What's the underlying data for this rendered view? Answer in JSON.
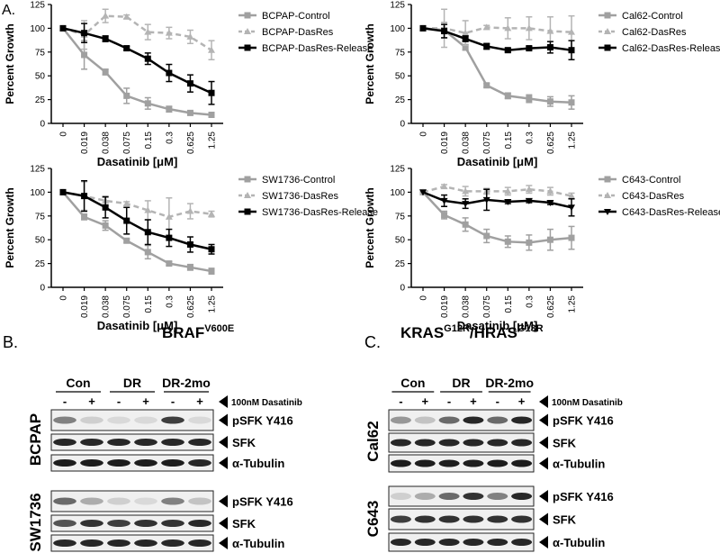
{
  "panel_a": {
    "label": "A."
  },
  "chart_data": [
    {
      "type": "line",
      "x_label": "Dasatinib [μM]",
      "y_label": "Percent Growth",
      "categories": [
        "0",
        "0.019",
        "0.038",
        "0.075",
        "0.15",
        "0.3",
        "0.625",
        "1.25"
      ],
      "ylim": [
        0,
        125
      ],
      "yticks": [
        0,
        25,
        50,
        75,
        100,
        125
      ],
      "grid": false,
      "series": [
        {
          "name": "BCPAP-Control",
          "color": "#a0a0a0",
          "dashed": false,
          "marker": "square",
          "values": [
            100,
            72,
            54,
            29,
            21,
            15,
            11,
            9
          ],
          "errors": [
            0,
            15,
            3,
            8,
            6,
            3,
            1,
            1
          ]
        },
        {
          "name": "BCPAP-DasRes",
          "color": "#b4b4b4",
          "dashed": true,
          "marker": "triangle",
          "values": [
            100,
            93,
            113,
            112,
            96,
            95,
            91,
            77
          ],
          "errors": [
            0,
            15,
            7,
            2,
            8,
            6,
            7,
            10
          ]
        },
        {
          "name": "BCPAP-DasRes-Release",
          "color": "#000000",
          "dashed": false,
          "marker": "square",
          "values": [
            100,
            95,
            89,
            79,
            68,
            53,
            42,
            32
          ],
          "errors": [
            0,
            10,
            3,
            2,
            6,
            9,
            9,
            12
          ]
        }
      ]
    },
    {
      "type": "line",
      "x_label": "Dasatinib [μM]",
      "y_label": "Percent Growth",
      "categories": [
        "0",
        "0.019",
        "0.038",
        "0.075",
        "0.15",
        "0.3",
        "0.625",
        "1.25"
      ],
      "ylim": [
        0,
        125
      ],
      "yticks": [
        0,
        25,
        50,
        75,
        100,
        125
      ],
      "grid": false,
      "series": [
        {
          "name": "Cal62-Control",
          "color": "#a0a0a0",
          "dashed": false,
          "marker": "square",
          "values": [
            100,
            98,
            80,
            40,
            29,
            26,
            23,
            22
          ],
          "errors": [
            0,
            8,
            3,
            2,
            3,
            4,
            5,
            7
          ]
        },
        {
          "name": "Cal62-DasRes",
          "color": "#b4b4b4",
          "dashed": true,
          "marker": "triangle",
          "values": [
            100,
            100,
            95,
            101,
            100,
            100,
            97,
            96
          ],
          "errors": [
            0,
            20,
            13,
            2,
            11,
            12,
            15,
            17
          ]
        },
        {
          "name": "Cal62-DasRes-Release",
          "color": "#000000",
          "dashed": false,
          "marker": "square",
          "values": [
            100,
            97,
            89,
            81,
            77,
            79,
            80,
            77
          ],
          "errors": [
            0,
            7,
            3,
            3,
            2,
            2,
            6,
            10
          ]
        }
      ]
    },
    {
      "type": "line",
      "x_label": "Dasatinib [μM]",
      "y_label": "Percent Growth",
      "categories": [
        "0",
        "0.019",
        "0.038",
        "0.075",
        "0.15",
        "0.3",
        "0.625",
        "1.25"
      ],
      "ylim": [
        0,
        125
      ],
      "yticks": [
        0,
        25,
        50,
        75,
        100,
        125
      ],
      "grid": false,
      "series": [
        {
          "name": "SW1736-Control",
          "color": "#a0a0a0",
          "dashed": false,
          "marker": "square",
          "values": [
            100,
            74,
            65,
            49,
            37,
            25,
            21,
            17
          ],
          "errors": [
            0,
            3,
            5,
            2,
            7,
            2,
            3,
            3
          ]
        },
        {
          "name": "SW1736-DasRes",
          "color": "#b4b4b4",
          "dashed": true,
          "marker": "triangle",
          "values": [
            100,
            96,
            91,
            88,
            81,
            74,
            80,
            77
          ],
          "errors": [
            0,
            15,
            5,
            2,
            10,
            20,
            8,
            3
          ]
        },
        {
          "name": "SW1736-DasRes-Release",
          "color": "#000000",
          "dashed": false,
          "marker": "square",
          "values": [
            100,
            96,
            84,
            70,
            58,
            52,
            45,
            40
          ],
          "errors": [
            0,
            16,
            11,
            14,
            13,
            9,
            8,
            5
          ]
        }
      ]
    },
    {
      "type": "line",
      "x_label": "Dasatinib [μM]",
      "y_label": "Percent Growth",
      "categories": [
        "0",
        "0.019",
        "0.038",
        "0.075",
        "0.15",
        "0.3",
        "0.625",
        "1.25"
      ],
      "ylim": [
        0,
        125
      ],
      "yticks": [
        0,
        25,
        50,
        75,
        100,
        125
      ],
      "grid": false,
      "series": [
        {
          "name": "C643-Control",
          "color": "#a0a0a0",
          "dashed": false,
          "marker": "square",
          "values": [
            100,
            76,
            66,
            54,
            48,
            47,
            50,
            52
          ],
          "errors": [
            0,
            4,
            7,
            7,
            6,
            8,
            11,
            12
          ]
        },
        {
          "name": "C643-DasRes",
          "color": "#b4b4b4",
          "dashed": true,
          "marker": "triangle",
          "values": [
            100,
            106,
            101,
            101,
            101,
            103,
            101,
            96
          ],
          "errors": [
            0,
            2,
            5,
            3,
            4,
            4,
            4,
            3
          ]
        },
        {
          "name": "C643-DasRes-Release",
          "color": "#000000",
          "dashed": false,
          "marker": "triangle-down",
          "values": [
            100,
            91,
            88,
            92,
            90,
            91,
            89,
            84
          ],
          "errors": [
            0,
            6,
            5,
            11,
            2,
            2,
            2,
            9
          ]
        }
      ]
    }
  ],
  "panel_b": {
    "label": "B.",
    "title": [
      "BRAF",
      "V600E"
    ],
    "groups": [
      "Con",
      "DR",
      "DR-2mo"
    ],
    "treatment": [
      "-",
      "+"
    ],
    "treatment_label": "100nM Dasatinib",
    "cell_lines": [
      {
        "name": "BCPAP",
        "rows": [
          "pSFK Y416",
          "SFK",
          "α-Tubulin"
        ]
      },
      {
        "name": "SW1736",
        "rows": [
          "pSFK Y416",
          "SFK",
          "α-Tubulin"
        ]
      }
    ]
  },
  "panel_c": {
    "label": "C.",
    "title": [
      "KRAS",
      "G12R",
      "/HRAS",
      "G13R"
    ],
    "groups": [
      "Con",
      "DR",
      "DR-2mo"
    ],
    "treatment": [
      "-",
      "+"
    ],
    "treatment_label": "100nM Dasatinib",
    "cell_lines": [
      {
        "name": "Cal62",
        "rows": [
          "pSFK Y416",
          "SFK",
          "α-Tubulin"
        ]
      },
      {
        "name": "C643",
        "rows": [
          "pSFK Y416",
          "SFK",
          "α-Tubulin"
        ]
      }
    ]
  }
}
